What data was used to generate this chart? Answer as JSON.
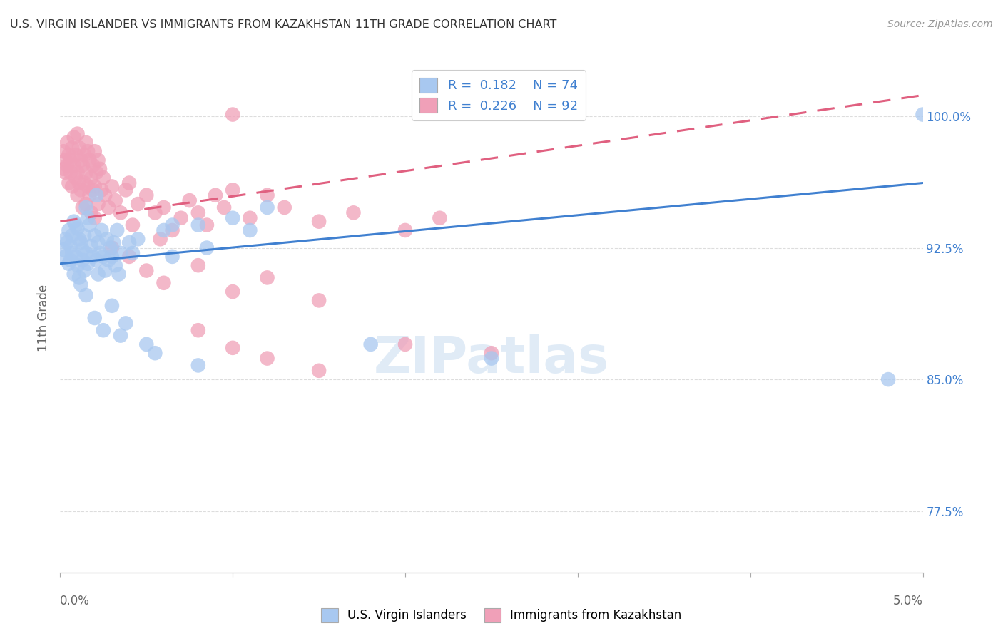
{
  "title": "U.S. VIRGIN ISLANDER VS IMMIGRANTS FROM KAZAKHSTAN 11TH GRADE CORRELATION CHART",
  "source": "Source: ZipAtlas.com",
  "ylabel": "11th Grade",
  "xlim": [
    0.0,
    0.05
  ],
  "ylim": [
    0.74,
    1.03
  ],
  "blue_color": "#A8C8F0",
  "pink_color": "#F0A0B8",
  "trend_blue": "#4080D0",
  "trend_pink": "#E06080",
  "blue_scatter": [
    [
      0.0002,
      0.924
    ],
    [
      0.0003,
      0.93
    ],
    [
      0.0003,
      0.92
    ],
    [
      0.0004,
      0.928
    ],
    [
      0.0005,
      0.935
    ],
    [
      0.0005,
      0.916
    ],
    [
      0.0006,
      0.926
    ],
    [
      0.0006,
      0.918
    ],
    [
      0.0007,
      0.932
    ],
    [
      0.0007,
      0.922
    ],
    [
      0.0008,
      0.94
    ],
    [
      0.0008,
      0.91
    ],
    [
      0.0009,
      0.938
    ],
    [
      0.0009,
      0.92
    ],
    [
      0.001,
      0.936
    ],
    [
      0.001,
      0.915
    ],
    [
      0.0011,
      0.93
    ],
    [
      0.0011,
      0.908
    ],
    [
      0.0012,
      0.928
    ],
    [
      0.0012,
      0.904
    ],
    [
      0.0013,
      0.924
    ],
    [
      0.0013,
      0.918
    ],
    [
      0.0014,
      0.932
    ],
    [
      0.0014,
      0.912
    ],
    [
      0.0015,
      0.948
    ],
    [
      0.0015,
      0.922
    ],
    [
      0.0016,
      0.942
    ],
    [
      0.0016,
      0.916
    ],
    [
      0.0017,
      0.938
    ],
    [
      0.0018,
      0.926
    ],
    [
      0.0019,
      0.92
    ],
    [
      0.002,
      0.932
    ],
    [
      0.0021,
      0.955
    ],
    [
      0.0021,
      0.918
    ],
    [
      0.0022,
      0.928
    ],
    [
      0.0022,
      0.91
    ],
    [
      0.0023,
      0.922
    ],
    [
      0.0024,
      0.935
    ],
    [
      0.0025,
      0.92
    ],
    [
      0.0026,
      0.912
    ],
    [
      0.0027,
      0.93
    ],
    [
      0.0028,
      0.918
    ],
    [
      0.0029,
      0.925
    ],
    [
      0.003,
      0.92
    ],
    [
      0.0031,
      0.928
    ],
    [
      0.0032,
      0.915
    ],
    [
      0.0033,
      0.935
    ],
    [
      0.0034,
      0.91
    ],
    [
      0.0035,
      0.922
    ],
    [
      0.004,
      0.928
    ],
    [
      0.0042,
      0.922
    ],
    [
      0.0045,
      0.93
    ],
    [
      0.006,
      0.935
    ],
    [
      0.0065,
      0.938
    ],
    [
      0.0065,
      0.92
    ],
    [
      0.008,
      0.938
    ],
    [
      0.0085,
      0.925
    ],
    [
      0.01,
      0.942
    ],
    [
      0.011,
      0.935
    ],
    [
      0.012,
      0.948
    ],
    [
      0.0015,
      0.898
    ],
    [
      0.002,
      0.885
    ],
    [
      0.0025,
      0.878
    ],
    [
      0.003,
      0.892
    ],
    [
      0.0035,
      0.875
    ],
    [
      0.0038,
      0.882
    ],
    [
      0.005,
      0.87
    ],
    [
      0.0055,
      0.865
    ],
    [
      0.008,
      0.858
    ],
    [
      0.018,
      0.87
    ],
    [
      0.025,
      0.862
    ],
    [
      0.048,
      0.85
    ],
    [
      0.05,
      1.001
    ]
  ],
  "pink_scatter": [
    [
      0.0002,
      0.98
    ],
    [
      0.0002,
      0.97
    ],
    [
      0.0003,
      0.975
    ],
    [
      0.0003,
      0.968
    ],
    [
      0.0004,
      0.985
    ],
    [
      0.0004,
      0.972
    ],
    [
      0.0005,
      0.978
    ],
    [
      0.0005,
      0.962
    ],
    [
      0.0006,
      0.975
    ],
    [
      0.0006,
      0.968
    ],
    [
      0.0007,
      0.982
    ],
    [
      0.0007,
      0.96
    ],
    [
      0.0008,
      0.988
    ],
    [
      0.0008,
      0.972
    ],
    [
      0.0009,
      0.978
    ],
    [
      0.0009,
      0.965
    ],
    [
      0.001,
      0.99
    ],
    [
      0.001,
      0.968
    ],
    [
      0.001,
      0.955
    ],
    [
      0.0011,
      0.982
    ],
    [
      0.0011,
      0.962
    ],
    [
      0.0012,
      0.975
    ],
    [
      0.0012,
      0.958
    ],
    [
      0.0013,
      0.972
    ],
    [
      0.0013,
      0.948
    ],
    [
      0.0014,
      0.978
    ],
    [
      0.0014,
      0.962
    ],
    [
      0.0015,
      0.985
    ],
    [
      0.0015,
      0.968
    ],
    [
      0.0015,
      0.95
    ],
    [
      0.0016,
      0.98
    ],
    [
      0.0016,
      0.96
    ],
    [
      0.0017,
      0.975
    ],
    [
      0.0017,
      0.955
    ],
    [
      0.0018,
      0.965
    ],
    [
      0.0018,
      0.945
    ],
    [
      0.0019,
      0.972
    ],
    [
      0.0019,
      0.958
    ],
    [
      0.002,
      0.98
    ],
    [
      0.002,
      0.96
    ],
    [
      0.002,
      0.942
    ],
    [
      0.0021,
      0.968
    ],
    [
      0.0022,
      0.975
    ],
    [
      0.0022,
      0.95
    ],
    [
      0.0023,
      0.97
    ],
    [
      0.0024,
      0.958
    ],
    [
      0.0025,
      0.965
    ],
    [
      0.0026,
      0.955
    ],
    [
      0.0028,
      0.948
    ],
    [
      0.003,
      0.96
    ],
    [
      0.0032,
      0.952
    ],
    [
      0.0035,
      0.945
    ],
    [
      0.0038,
      0.958
    ],
    [
      0.004,
      0.962
    ],
    [
      0.0042,
      0.938
    ],
    [
      0.0045,
      0.95
    ],
    [
      0.005,
      0.955
    ],
    [
      0.0055,
      0.945
    ],
    [
      0.0058,
      0.93
    ],
    [
      0.006,
      0.948
    ],
    [
      0.0065,
      0.935
    ],
    [
      0.007,
      0.942
    ],
    [
      0.0075,
      0.952
    ],
    [
      0.008,
      0.945
    ],
    [
      0.0085,
      0.938
    ],
    [
      0.009,
      0.955
    ],
    [
      0.0095,
      0.948
    ],
    [
      0.01,
      0.958
    ],
    [
      0.011,
      0.942
    ],
    [
      0.012,
      0.955
    ],
    [
      0.013,
      0.948
    ],
    [
      0.015,
      0.94
    ],
    [
      0.017,
      0.945
    ],
    [
      0.02,
      0.935
    ],
    [
      0.022,
      0.942
    ],
    [
      0.003,
      0.925
    ],
    [
      0.004,
      0.92
    ],
    [
      0.005,
      0.912
    ],
    [
      0.006,
      0.905
    ],
    [
      0.008,
      0.915
    ],
    [
      0.01,
      0.9
    ],
    [
      0.012,
      0.908
    ],
    [
      0.015,
      0.895
    ],
    [
      0.008,
      0.878
    ],
    [
      0.01,
      0.868
    ],
    [
      0.012,
      0.862
    ],
    [
      0.015,
      0.855
    ],
    [
      0.02,
      0.87
    ],
    [
      0.025,
      0.865
    ],
    [
      0.01,
      1.001
    ]
  ],
  "blue_trend_x": [
    0.0,
    0.05
  ],
  "blue_trend_y": [
    0.916,
    0.962
  ],
  "pink_trend_x": [
    0.0,
    0.05
  ],
  "pink_trend_y": [
    0.94,
    1.012
  ],
  "background_color": "#FFFFFF",
  "grid_color": "#DDDDDD",
  "text_color_blue": "#4080D0",
  "ytick_vals": [
    0.775,
    0.85,
    0.925,
    1.0
  ],
  "ytick_labels": [
    "77.5%",
    "85.0%",
    "92.5%",
    "100.0%"
  ]
}
